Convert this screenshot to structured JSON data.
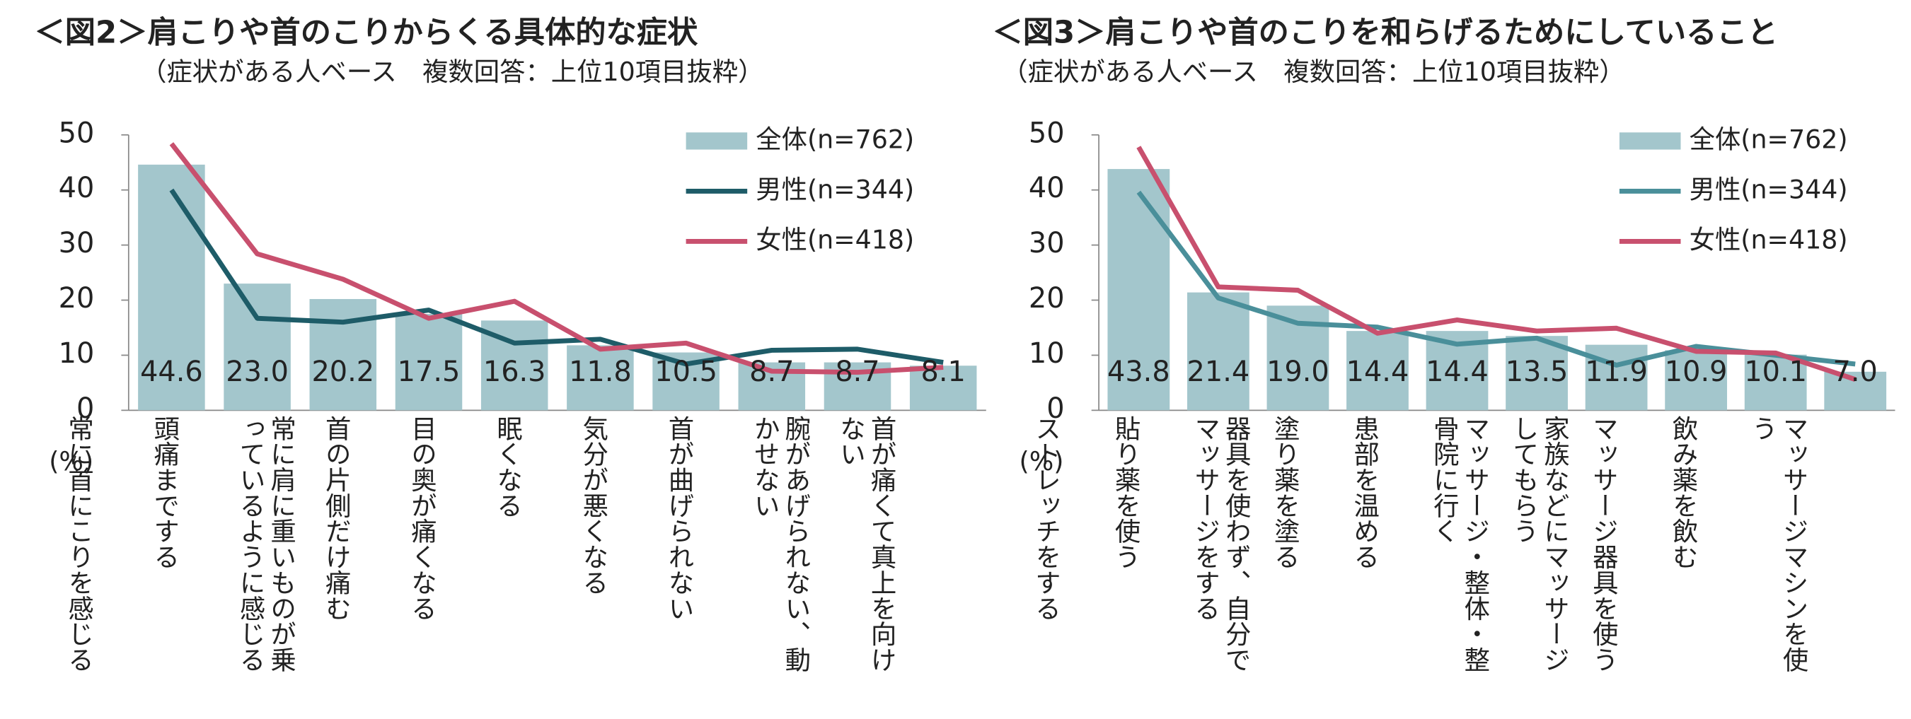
{
  "chart_data": [
    {
      "type": "bar",
      "title": "＜図2＞肩こりや首のこりからくる具体的な症状",
      "subtitle": "（症状がある人ベース　複数回答：上位10項目抜粋）",
      "y_label": "(%)",
      "categories": [
        "常に首にこりを感じる",
        "頭痛までする",
        "常に肩に重いものが乗っているように感じる",
        "首の片側だけ痛む",
        "目の奥が痛くなる",
        "眠くなる",
        "気分が悪くなる",
        "首が曲げられない",
        "腕があげられない、動かせない",
        "首が痛くて真上を向けない"
      ],
      "ylim": [
        0,
        50
      ],
      "yticks": [
        0,
        10,
        20,
        30,
        40,
        50
      ],
      "series": [
        {
          "name": "全体(n=762)",
          "type": "bar",
          "color": "#a3c6cc",
          "values": [
            44.6,
            23.0,
            20.2,
            17.5,
            16.3,
            11.8,
            10.5,
            8.7,
            8.7,
            8.1
          ],
          "value_labels": [
            "44.6",
            "23.0",
            "20.2",
            "17.5",
            "16.3",
            "11.8",
            "10.5",
            "8.7",
            "8.7",
            "8.1"
          ]
        },
        {
          "name": "男性(n=344)",
          "type": "line",
          "color": "#1e5c68",
          "values": [
            40.0,
            16.7,
            16.0,
            18.2,
            12.2,
            12.9,
            8.4,
            10.9,
            11.1,
            8.7
          ]
        },
        {
          "name": "女性(n=418)",
          "type": "line",
          "color": "#c8506e",
          "values": [
            48.4,
            28.4,
            23.8,
            16.7,
            19.8,
            11.1,
            12.2,
            7.1,
            6.9,
            7.8
          ]
        }
      ]
    },
    {
      "type": "bar",
      "title": "＜図3＞肩こりや首のこりを和らげるためにしていること",
      "subtitle": "（症状がある人ベース　複数回答：上位10項目抜粋）",
      "y_label": "(%)",
      "categories": [
        "ストレッチをする",
        "貼り薬を使う",
        "器具を使わず、自分でマッサージをする",
        "塗り薬を塗る",
        "患部を温める",
        "マッサージ・整体・整骨院に行く",
        "家族などにマッサージしてもらう",
        "マッサージ器具を使う",
        "飲み薬を飲む",
        "マッサージマシンを使う"
      ],
      "ylim": [
        0,
        50
      ],
      "yticks": [
        0,
        10,
        20,
        30,
        40,
        50
      ],
      "series": [
        {
          "name": "全体(n=762)",
          "type": "bar",
          "color": "#a3c6cc",
          "values": [
            43.8,
            21.4,
            19.0,
            14.4,
            14.4,
            13.5,
            11.9,
            10.9,
            10.1,
            7.0
          ],
          "value_labels": [
            "43.8",
            "21.4",
            "19.0",
            "14.4",
            "14.4",
            "13.5",
            "11.9",
            "10.9",
            "10.1",
            "7.0"
          ]
        },
        {
          "name": "男性(n=344)",
          "type": "line",
          "color": "#4a8f9a",
          "values": [
            39.6,
            20.4,
            15.8,
            15.1,
            12.0,
            13.1,
            8.2,
            11.6,
            10.0,
            8.4
          ]
        },
        {
          "name": "女性(n=418)",
          "type": "line",
          "color": "#c8506e",
          "values": [
            47.8,
            22.4,
            21.8,
            14.0,
            16.4,
            14.4,
            14.9,
            10.7,
            10.4,
            5.6
          ]
        }
      ]
    }
  ]
}
